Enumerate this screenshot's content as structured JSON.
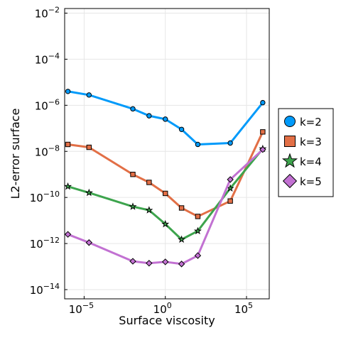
{
  "chart_data": {
    "type": "line",
    "xlabel": "Surface viscosity",
    "ylabel": "L2-error surface",
    "xscale": "log",
    "yscale": "log",
    "xlim_log10": [
      -6.2,
      6.4
    ],
    "ylim_log10": [
      -14.4,
      -1.8
    ],
    "x_ticks": [
      {
        "base": "10",
        "exp": "−5",
        "value": 1e-05
      },
      {
        "base": "10",
        "exp": "0",
        "value": 1
      },
      {
        "base": "10",
        "exp": "5",
        "value": 100000
      }
    ],
    "y_ticks": [
      {
        "base": "10",
        "exp": "−2",
        "value": 0.01
      },
      {
        "base": "10",
        "exp": "−4",
        "value": 0.0001
      },
      {
        "base": "10",
        "exp": "−6",
        "value": 1e-06
      },
      {
        "base": "10",
        "exp": "−8",
        "value": 1e-08
      },
      {
        "base": "10",
        "exp": "−10",
        "value": 1e-10
      },
      {
        "base": "10",
        "exp": "−12",
        "value": 1e-12
      },
      {
        "base": "10",
        "exp": "−14",
        "value": 1e-14
      }
    ],
    "grid": true,
    "legend": "outside-right",
    "x": [
      1e-06,
      2e-05,
      0.01,
      0.1,
      1,
      10,
      100,
      10000,
      1000000
    ],
    "series": [
      {
        "name": "k=2",
        "color": "#009AFA",
        "marker": "circle",
        "values": [
          4e-06,
          2.8e-06,
          7e-07,
          3.5e-07,
          2.5e-07,
          9e-08,
          2e-08,
          2.3e-08,
          1.3e-06
        ]
      },
      {
        "name": "k=3",
        "color": "#E26F46",
        "marker": "square",
        "values": [
          2e-08,
          1.5e-08,
          1e-09,
          4.5e-10,
          1.5e-10,
          3.5e-11,
          1.5e-11,
          7e-11,
          7e-08
        ]
      },
      {
        "name": "k=4",
        "color": "#3DA44D",
        "marker": "star",
        "values": [
          3e-10,
          1.6e-10,
          4e-11,
          2.8e-11,
          7e-12,
          1.5e-12,
          3.5e-12,
          2.5e-10,
          1.3e-08
        ]
      },
      {
        "name": "k=5",
        "color": "#C271D2",
        "marker": "diamond",
        "values": [
          2.5e-12,
          1.1e-12,
          1.7e-13,
          1.4e-13,
          1.6e-13,
          1.3e-13,
          3e-13,
          6e-10,
          1.2e-08
        ]
      }
    ]
  }
}
